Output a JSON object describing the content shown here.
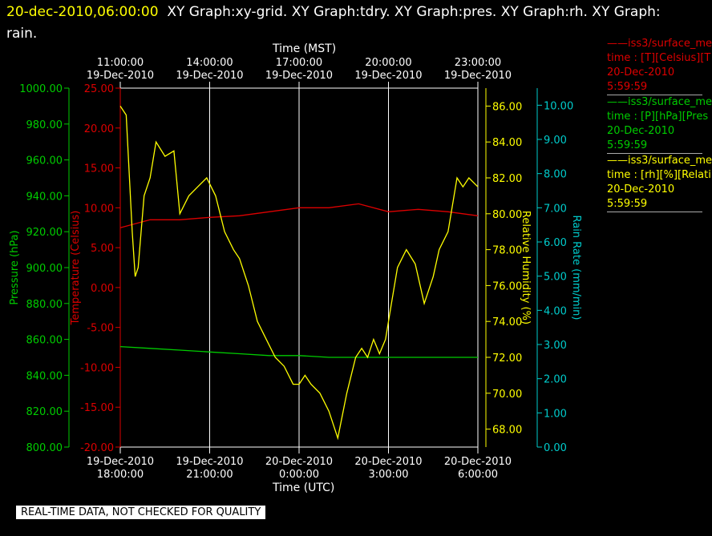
{
  "header": {
    "timestamp": "20-dec-2010,06:00:00",
    "graphs": "XY Graph:xy-grid.  XY Graph:tdry.  XY Graph:pres.  XY Graph:rh.  XY Graph: rain."
  },
  "axes": {
    "top_title": "Time (MST)",
    "bottom_title": "Time (UTC)",
    "top_ticks": [
      {
        "time": "11:00:00",
        "date": "19-Dec-2010"
      },
      {
        "time": "14:00:00",
        "date": "19-Dec-2010"
      },
      {
        "time": "17:00:00",
        "date": "19-Dec-2010"
      },
      {
        "time": "20:00:00",
        "date": "19-Dec-2010"
      },
      {
        "time": "23:00:00",
        "date": "19-Dec-2010"
      }
    ],
    "bottom_ticks": [
      {
        "date": "19-Dec-2010",
        "time": "18:00:00"
      },
      {
        "date": "19-Dec-2010",
        "time": "21:00:00"
      },
      {
        "date": "20-Dec-2010",
        "time": "0:00:00"
      },
      {
        "date": "20-Dec-2010",
        "time": "3:00:00"
      },
      {
        "date": "20-Dec-2010",
        "time": "6:00:00"
      }
    ],
    "pressure": {
      "label": "Pressure (hPa)",
      "color": "#00cc00",
      "range": [
        800,
        1000
      ],
      "ticks": [
        "800.00",
        "820.00",
        "840.00",
        "860.00",
        "880.00",
        "900.00",
        "920.00",
        "940.00",
        "960.00",
        "980.00",
        "1000.00"
      ]
    },
    "temperature": {
      "label": "Temperature (Celsius)",
      "color": "#dd0000",
      "range": [
        -20,
        25
      ],
      "ticks": [
        "-20.00",
        "-15.00",
        "-10.00",
        "-5.00",
        "0.00",
        "5.00",
        "10.00",
        "15.00",
        "20.00",
        "25.00"
      ]
    },
    "humidity": {
      "label": "Relative Humidity (%)",
      "color": "#ffff00",
      "range": [
        67,
        87
      ],
      "ticks": [
        "68.00",
        "70.00",
        "72.00",
        "74.00",
        "76.00",
        "78.00",
        "80.00",
        "82.00",
        "84.00",
        "86.00"
      ]
    },
    "rain": {
      "label": "Rain Rate (mm/min)",
      "color": "#00cccc",
      "range": [
        0,
        10.5
      ],
      "ticks": [
        "0.00",
        "1.00",
        "2.00",
        "3.00",
        "4.00",
        "5.00",
        "6.00",
        "7.00",
        "8.00",
        "9.00",
        "10.00"
      ]
    }
  },
  "legend": [
    {
      "line": "iss3/surface_me",
      "field": "time : [T][Celsius][T",
      "date": "20-Dec-2010",
      "time": "5:59:59",
      "color": "#dd0000"
    },
    {
      "line": "iss3/surface_me",
      "field": "time : [P][hPa][Pres",
      "date": "20-Dec-2010",
      "time": "5:59:59",
      "color": "#00cc00"
    },
    {
      "line": "iss3/surface_me",
      "field": "time : [rh][%][Relati",
      "date": "20-Dec-2010",
      "time": "5:59:59",
      "color": "#ffff00"
    }
  ],
  "footer": "REAL-TIME DATA, NOT CHECKED FOR QUALITY",
  "chart_data": {
    "type": "line",
    "x_range_utc_hours": [
      18,
      30
    ],
    "x_ticks_utc_hours": [
      18,
      21,
      24,
      27,
      30
    ],
    "grid": true,
    "series": [
      {
        "name": "iss3/surface_me",
        "axis": "temperature",
        "color": "#dd0000",
        "x": [
          18,
          19,
          20,
          21,
          22,
          23,
          24,
          25,
          26,
          27,
          28,
          29,
          30
        ],
        "y": [
          7.5,
          8.5,
          8.5,
          8.8,
          9.0,
          9.5,
          10.0,
          10.0,
          10.5,
          9.5,
          9.8,
          9.5,
          9.0
        ]
      },
      {
        "name": "iss3/surface_me",
        "axis": "pressure",
        "color": "#00cc00",
        "x": [
          18,
          19,
          20,
          21,
          22,
          23,
          24,
          25,
          26,
          27,
          28,
          29,
          30
        ],
        "y": [
          856,
          855,
          854,
          853,
          852,
          851,
          851,
          850,
          850,
          850,
          850,
          850,
          850
        ]
      },
      {
        "name": "iss3/surface_me",
        "axis": "humidity",
        "color": "#ffff00",
        "x": [
          18,
          18.2,
          18.4,
          18.5,
          18.6,
          18.8,
          19,
          19.2,
          19.5,
          19.8,
          20,
          20.3,
          20.6,
          20.9,
          21.2,
          21.5,
          21.8,
          22,
          22.3,
          22.6,
          22.9,
          23.2,
          23.5,
          23.8,
          24,
          24.2,
          24.4,
          24.7,
          25,
          25.3,
          25.6,
          25.9,
          26.1,
          26.3,
          26.5,
          26.7,
          26.9,
          27.1,
          27.3,
          27.6,
          27.9,
          28.2,
          28.5,
          28.7,
          29,
          29.3,
          29.5,
          29.7,
          30
        ],
        "y": [
          86,
          85.5,
          79,
          76.5,
          77,
          81,
          82,
          84,
          83.2,
          83.5,
          80,
          81,
          81.5,
          82,
          81,
          79,
          78,
          77.5,
          76,
          74,
          73,
          72,
          71.5,
          70.5,
          70.5,
          71,
          70.5,
          70,
          69,
          67.5,
          70,
          72,
          72.5,
          72,
          73,
          72.2,
          73,
          75,
          77,
          78,
          77.2,
          75,
          76.5,
          78,
          79,
          82,
          81.5,
          82,
          81.5
        ]
      }
    ]
  }
}
